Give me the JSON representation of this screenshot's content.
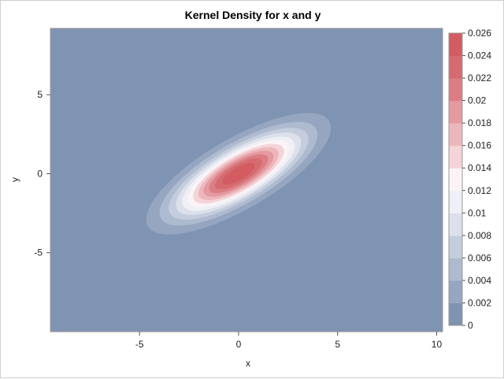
{
  "chart_data": {
    "type": "heatmap",
    "title": "Kernel Density for x and y",
    "xlabel": "x",
    "ylabel": "y",
    "xlim": [
      -9.5,
      10.3
    ],
    "ylim": [
      -10.0,
      9.2
    ],
    "x_ticks": [
      -5,
      0,
      5,
      10
    ],
    "y_ticks": [
      -5,
      0,
      5
    ],
    "colorbar": {
      "range": [
        0,
        0.026
      ],
      "ticks": [
        0,
        0.002,
        0.004,
        0.006,
        0.008,
        0.01,
        0.012,
        0.014,
        0.016,
        0.018,
        0.02,
        0.022,
        0.024,
        0.026
      ],
      "tick_labels": [
        "0",
        "0.002",
        "0.004",
        "0.006",
        "0.008",
        "0.01",
        "0.012",
        "0.014",
        "0.016",
        "0.018",
        "0.02",
        "0.022",
        "0.024",
        "0.026"
      ],
      "levels": 13,
      "colors": [
        "#7f93b2",
        "#96a6c1",
        "#adbacf",
        "#c4cddd",
        "#dbe0eb",
        "#eef0f6",
        "#fbf3f5",
        "#f4d4d8",
        "#ecb7bc",
        "#e49aa0",
        "#dc7d84",
        "#d56a70",
        "#d25c62"
      ]
    },
    "density_model": {
      "center": [
        0.0,
        0.0
      ],
      "major_axis_angle_deg": 36,
      "major_sd": 5.0,
      "minor_sd": 1.8,
      "peak_density": 0.026
    },
    "legend": "right"
  }
}
